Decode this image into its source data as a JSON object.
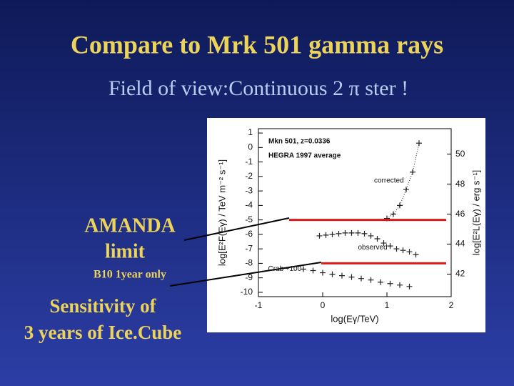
{
  "title": "Compare to Mrk 501 gamma rays",
  "subtitle": "Field of view:Continuous 2 π ster !",
  "amanda_label": [
    "AMANDA",
    "limit"
  ],
  "amanda_note": "B10 1year only",
  "icecube_label": [
    "Sensitivity of",
    "3 years of Ice.Cube"
  ],
  "chart_data": {
    "type": "scatter",
    "annotations": [
      "Mkn 501, z=0.0336",
      "HEGRA 1997 average"
    ],
    "x_label": "log(Eγ/TeV)",
    "y_label": "log[E²F(Eγ) / TeV m⁻² s⁻¹]",
    "y2_label": "log[E²L(Eγ) / erg s⁻¹]",
    "xlim": [
      -1,
      2
    ],
    "xticks": [
      -1,
      0,
      1,
      2
    ],
    "ylim": [
      -10.3,
      1.3
    ],
    "yticks": [
      1,
      0,
      -1,
      -2,
      -3,
      -4,
      -5,
      -6,
      -7,
      -8,
      -9,
      -10
    ],
    "y2lim": [
      40.5,
      51.7
    ],
    "y2ticks": [
      50,
      48,
      46,
      44,
      42
    ],
    "hlines": [
      -5,
      -8
    ],
    "hline_color": "#e01818",
    "series": [
      {
        "name": "corrected",
        "color": "#222222",
        "x": [
          1.0,
          1.1,
          1.2,
          1.3,
          1.4,
          1.5
        ],
        "values": [
          -4.9,
          -4.6,
          -4.0,
          -2.9,
          -1.7,
          0.3
        ]
      },
      {
        "name": "observed",
        "color": "#222222",
        "x": [
          -0.05,
          0.05,
          0.15,
          0.25,
          0.35,
          0.45,
          0.55,
          0.65,
          0.75,
          0.85,
          0.95,
          1.05,
          1.15,
          1.25,
          1.35,
          1.45
        ],
        "values": [
          -6.1,
          -6.05,
          -6.0,
          -5.95,
          -5.9,
          -5.9,
          -5.9,
          -5.95,
          -6.1,
          -6.3,
          -6.6,
          -6.8,
          -7.0,
          -7.1,
          -7.2,
          -7.4
        ]
      },
      {
        "name": "Crab ÷100",
        "color": "#222222",
        "x": [
          -0.3,
          -0.15,
          0,
          0.15,
          0.3,
          0.45,
          0.6,
          0.75,
          0.9,
          1.05,
          1.2,
          1.35
        ],
        "values": [
          -8.4,
          -8.5,
          -8.65,
          -8.75,
          -8.85,
          -8.95,
          -9.05,
          -9.15,
          -9.3,
          -9.4,
          -9.5,
          -9.6
        ]
      }
    ]
  }
}
